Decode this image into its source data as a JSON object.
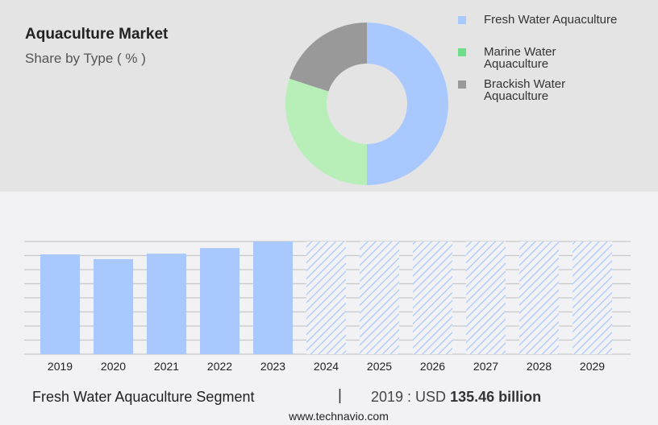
{
  "header": {
    "title": "Aquaculture Market",
    "subtitle": "Share by Type ( % )"
  },
  "donut": {
    "type": "pie",
    "segments": [
      {
        "label": "Fresh Water Aquaculture",
        "value": 50,
        "color": "#a8c8fe"
      },
      {
        "label": "Marine Water Aquaculture",
        "value": 30,
        "color": "#b8efb8"
      },
      {
        "label": "Brackish Water Aquaculture",
        "value": 20,
        "color": "#999999"
      }
    ],
    "legend": [
      {
        "label": "Fresh Water Aquaculture",
        "color": "#a8c8fe"
      },
      {
        "label": "Marine Water Aquaculture",
        "color": "#6fe08a"
      },
      {
        "label": "Brackish Water Aquaculture",
        "color": "#999999"
      }
    ]
  },
  "chart_data": {
    "type": "bar",
    "categories": [
      "2019",
      "2020",
      "2021",
      "2022",
      "2023",
      "2024",
      "2025",
      "2026",
      "2027",
      "2028",
      "2029"
    ],
    "values": [
      135.46,
      129,
      136.5,
      144,
      153,
      null,
      null,
      null,
      null,
      null,
      null
    ],
    "forecast_from": "2024",
    "ylim": [
      0,
      153
    ],
    "grid": true,
    "bar_color": "#a8c8fe",
    "forecast_style": "hatched"
  },
  "footer": {
    "segment": "Fresh Water Aquaculture Segment",
    "separator": "|",
    "year_label": "2019 : USD ",
    "value": "135.46 billion",
    "url": "www.technavio.com"
  }
}
